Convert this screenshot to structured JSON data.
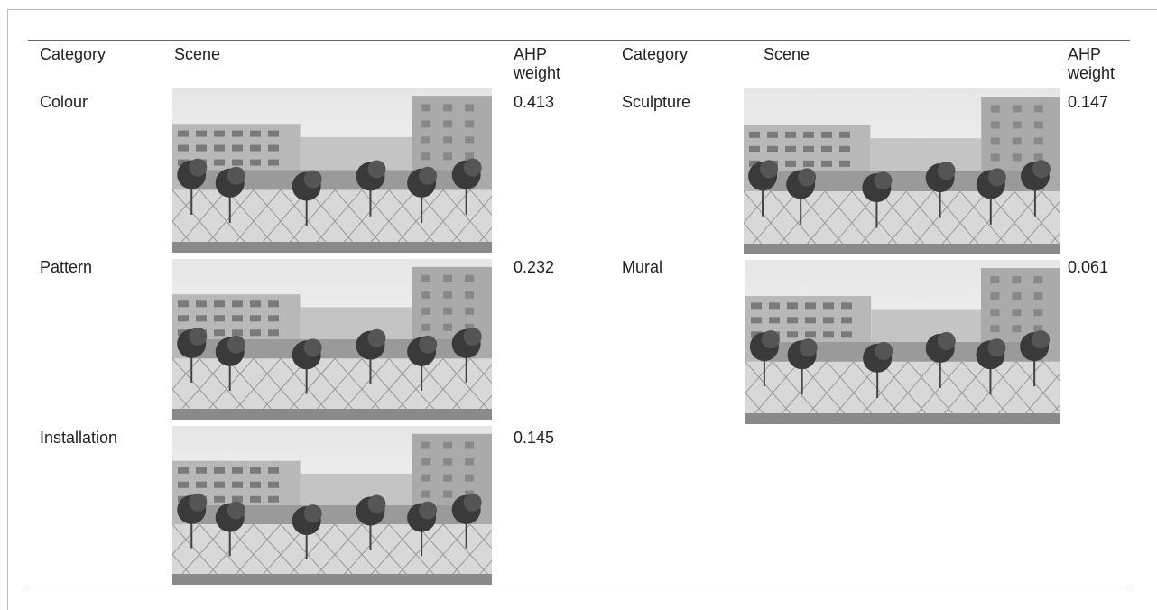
{
  "table": {
    "headers": [
      "Category",
      "Scene",
      "AHP weight",
      "Category",
      "Scene",
      "AHP weight"
    ],
    "left_rows": [
      {
        "category": "Colour",
        "weight": 0.413
      },
      {
        "category": "Pattern",
        "weight": 0.232
      },
      {
        "category": "Installation",
        "weight": 0.145
      }
    ],
    "right_rows": [
      {
        "category": "Sculpture",
        "weight": 0.147
      },
      {
        "category": "Mural",
        "weight": 0.061
      }
    ]
  }
}
